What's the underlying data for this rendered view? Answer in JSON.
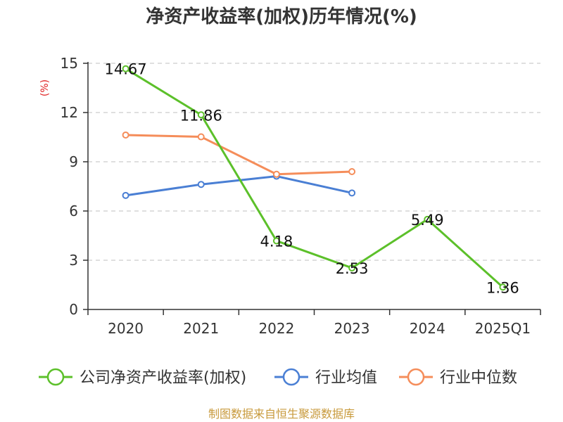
{
  "chart_data": {
    "type": "line",
    "title": "净资产收益率(加权)历年情况(%)",
    "ylabel": "(%)",
    "categories": [
      "2020",
      "2021",
      "2022",
      "2023",
      "2024",
      "2025Q1"
    ],
    "y_ticks": [
      "0",
      "3",
      "6",
      "9",
      "12",
      "15"
    ],
    "ylim": [
      0,
      15
    ],
    "grid": true,
    "legend_position": "bottom",
    "series": [
      {
        "name": "公司净资产收益率(加权)",
        "color": "#5cc02a",
        "values": [
          14.67,
          11.86,
          4.18,
          2.53,
          5.49,
          1.36
        ],
        "labels": [
          "14.67",
          "11.86",
          "4.18",
          "2.53",
          "5.49",
          "1.36"
        ]
      },
      {
        "name": "行业均值",
        "color": "#4a7fd4",
        "values": [
          6.95,
          7.62,
          8.12,
          7.1,
          null,
          null
        ]
      },
      {
        "name": "行业中位数",
        "color": "#f58d5a",
        "values": [
          10.63,
          10.52,
          8.24,
          8.4,
          null,
          null
        ]
      }
    ]
  },
  "source": "制图数据来自恒生聚源数据库"
}
